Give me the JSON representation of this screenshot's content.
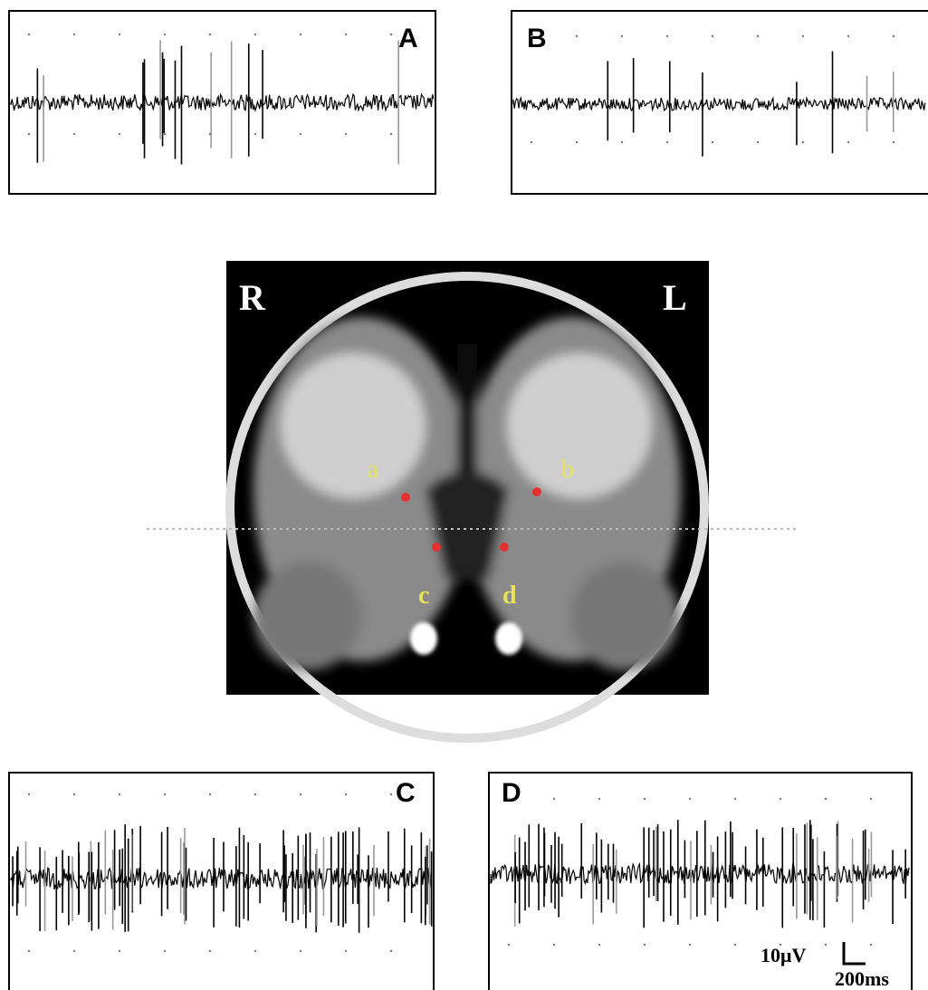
{
  "panels": [
    {
      "label": "A"
    },
    {
      "label": "B"
    },
    {
      "label": "C"
    },
    {
      "label": "D"
    }
  ],
  "mri": {
    "side_labels": [
      "R",
      "L"
    ],
    "sites": [
      "a",
      "b",
      "c",
      "d"
    ]
  },
  "scale_bar": {
    "amplitude": "10μV",
    "time": "200ms"
  }
}
